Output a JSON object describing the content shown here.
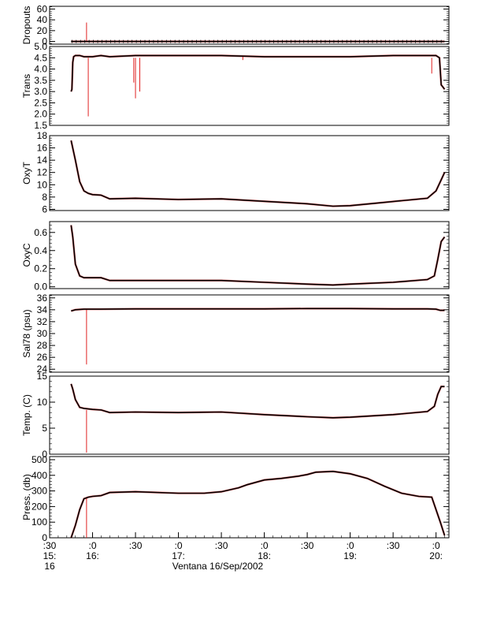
{
  "chart_data": {
    "type": "line",
    "x_title": "Ventana 16/Sep/2002",
    "x_tick_labels": [
      {
        "x": 15.5,
        "lines": [
          ":30",
          "15:",
          "16"
        ]
      },
      {
        "x": 16.0,
        "lines": [
          ":0",
          "16:"
        ]
      },
      {
        "x": 16.5,
        "lines": [
          ":30"
        ]
      },
      {
        "x": 17.0,
        "lines": [
          ":0",
          "17:"
        ]
      },
      {
        "x": 17.5,
        "lines": [
          ":30"
        ]
      },
      {
        "x": 18.0,
        "lines": [
          ":0",
          "18:"
        ]
      },
      {
        "x": 18.5,
        "lines": [
          ":30"
        ]
      },
      {
        "x": 19.0,
        "lines": [
          ":0",
          "19:"
        ]
      },
      {
        "x": 19.5,
        "lines": [
          ":30"
        ]
      },
      {
        "x": 20.0,
        "lines": [
          ":0",
          "20:"
        ]
      }
    ],
    "xlim": [
      15.5,
      20.15
    ],
    "colors": {
      "main": "#000000",
      "raw": "#e02020"
    },
    "panels": [
      {
        "ylabel": "Dropouts",
        "ylim": [
          -5,
          65
        ],
        "yticks": [
          "0",
          "20",
          "40",
          "60"
        ],
        "ytick_values": [
          0,
          20,
          40,
          60
        ],
        "series": [
          {
            "x": [
              15.75,
              20.1
            ],
            "y": [
              0,
              0
            ]
          }
        ],
        "spikes": [
          {
            "x": 15.93,
            "from": 0,
            "to": 35
          }
        ]
      },
      {
        "ylabel": "Trans",
        "ylim": [
          1.5,
          5.0
        ],
        "yticks": [
          "1.5",
          "2.0",
          "2.5",
          "3.0",
          "3.5",
          "4.0",
          "4.5",
          "5.0"
        ],
        "ytick_values": [
          1.5,
          2.0,
          2.5,
          3.0,
          3.5,
          4.0,
          4.5,
          5.0
        ],
        "series": [
          {
            "x": [
              15.75,
              15.76,
              15.77,
              15.78,
              15.8,
              15.85,
              15.9,
              16.0,
              16.1,
              16.2,
              16.5,
              17.0,
              17.5,
              18.0,
              18.5,
              19.0,
              19.5,
              19.9,
              20.0,
              20.04,
              20.06,
              20.08,
              20.1
            ],
            "y": [
              3.0,
              3.1,
              4.3,
              4.55,
              4.6,
              4.6,
              4.55,
              4.55,
              4.6,
              4.55,
              4.6,
              4.6,
              4.6,
              4.55,
              4.55,
              4.55,
              4.6,
              4.6,
              4.6,
              4.5,
              3.3,
              3.2,
              3.1
            ]
          }
        ],
        "spikes": [
          {
            "x": 15.95,
            "from": 4.5,
            "to": 1.9
          },
          {
            "x": 16.5,
            "from": 4.5,
            "to": 2.7
          },
          {
            "x": 16.55,
            "from": 4.5,
            "to": 3.0
          },
          {
            "x": 16.48,
            "from": 4.5,
            "to": 3.4
          },
          {
            "x": 19.95,
            "from": 4.5,
            "to": 3.8
          },
          {
            "x": 17.75,
            "from": 4.6,
            "to": 4.4
          }
        ]
      },
      {
        "ylabel": "OxyT",
        "ylim": [
          5.8,
          18
        ],
        "yticks": [
          "6",
          "8",
          "10",
          "12",
          "14",
          "16",
          "18"
        ],
        "ytick_values": [
          6,
          8,
          10,
          12,
          14,
          16,
          18
        ],
        "series": [
          {
            "x": [
              15.75,
              15.8,
              15.85,
              15.9,
              15.95,
              16.0,
              16.1,
              16.2,
              16.5,
              17.0,
              17.5,
              18.0,
              18.5,
              18.8,
              19.0,
              19.3,
              19.6,
              19.9,
              20.0,
              20.05,
              20.1
            ],
            "y": [
              17.2,
              14.0,
              10.5,
              9.0,
              8.6,
              8.4,
              8.3,
              7.7,
              7.8,
              7.6,
              7.7,
              7.3,
              6.9,
              6.5,
              6.6,
              7.0,
              7.4,
              7.8,
              9.0,
              10.5,
              12.0
            ]
          }
        ],
        "spikes": []
      },
      {
        "ylabel": "OxyC",
        "ylim": [
          -0.02,
          0.72
        ],
        "yticks": [
          "0.0",
          "0.2",
          "0.4",
          "0.6"
        ],
        "ytick_values": [
          0.0,
          0.2,
          0.4,
          0.6
        ],
        "series": [
          {
            "x": [
              15.75,
              15.77,
              15.8,
              15.85,
              15.9,
              16.0,
              16.1,
              16.2,
              16.5,
              17.0,
              17.5,
              18.0,
              18.5,
              18.8,
              19.0,
              19.5,
              19.9,
              19.98,
              20.02,
              20.06,
              20.1
            ],
            "y": [
              0.68,
              0.55,
              0.25,
              0.12,
              0.1,
              0.1,
              0.1,
              0.07,
              0.07,
              0.07,
              0.07,
              0.05,
              0.03,
              0.02,
              0.03,
              0.05,
              0.08,
              0.12,
              0.3,
              0.5,
              0.55
            ]
          }
        ],
        "spikes": []
      },
      {
        "ylabel": "Sal78 (psu)",
        "ylim": [
          23.5,
          36.5
        ],
        "yticks": [
          "24",
          "26",
          "28",
          "30",
          "32",
          "34",
          "36"
        ],
        "ytick_values": [
          24,
          26,
          28,
          30,
          32,
          34,
          36
        ],
        "series": [
          {
            "x": [
              15.75,
              15.8,
              15.9,
              16.0,
              16.5,
              17.0,
              17.5,
              18.0,
              18.5,
              19.0,
              19.5,
              19.9,
              20.0,
              20.05,
              20.1
            ],
            "y": [
              33.8,
              34.0,
              34.1,
              34.1,
              34.15,
              34.15,
              34.15,
              34.15,
              34.2,
              34.2,
              34.15,
              34.15,
              34.1,
              33.9,
              33.9
            ]
          }
        ],
        "spikes": [
          {
            "x": 15.93,
            "from": 34.1,
            "to": 24.8
          }
        ]
      },
      {
        "ylabel": "Temp. (C)",
        "ylim": [
          0,
          15
        ],
        "yticks": [
          "0",
          "5",
          "10",
          "15"
        ],
        "ytick_values": [
          0,
          5,
          10,
          15
        ],
        "series": [
          {
            "x": [
              15.75,
              15.77,
              15.8,
              15.85,
              15.9,
              16.0,
              16.1,
              16.2,
              16.5,
              17.0,
              17.5,
              18.0,
              18.5,
              18.8,
              19.0,
              19.5,
              19.9,
              19.98,
              20.02,
              20.06,
              20.1
            ],
            "y": [
              13.5,
              12.5,
              10.5,
              9.0,
              8.8,
              8.6,
              8.5,
              8.0,
              8.1,
              8.0,
              8.1,
              7.6,
              7.2,
              7.0,
              7.1,
              7.6,
              8.2,
              9.2,
              11.5,
              13.0,
              13.0
            ]
          }
        ],
        "spikes": [
          {
            "x": 15.93,
            "from": 8.5,
            "to": 0.3
          }
        ]
      },
      {
        "ylabel": "Press. (db)",
        "ylim": [
          0,
          520
        ],
        "yticks": [
          "0",
          "100",
          "200",
          "300",
          "400",
          "500"
        ],
        "ytick_values": [
          0,
          100,
          200,
          300,
          400,
          500
        ],
        "series": [
          {
            "x": [
              15.75,
              15.8,
              15.85,
              15.9,
              15.95,
              16.0,
              16.1,
              16.2,
              16.5,
              17.0,
              17.3,
              17.5,
              17.7,
              17.8,
              18.0,
              18.2,
              18.4,
              18.5,
              18.6,
              18.8,
              19.0,
              19.2,
              19.4,
              19.6,
              19.8,
              19.95,
              20.05,
              20.1
            ],
            "y": [
              0,
              80,
              180,
              250,
              260,
              265,
              270,
              290,
              295,
              285,
              285,
              295,
              320,
              340,
              370,
              380,
              395,
              405,
              420,
              425,
              410,
              380,
              330,
              285,
              265,
              260,
              100,
              15
            ]
          }
        ],
        "spikes": [
          {
            "x": 15.93,
            "from": 260,
            "to": 0
          }
        ]
      }
    ]
  }
}
